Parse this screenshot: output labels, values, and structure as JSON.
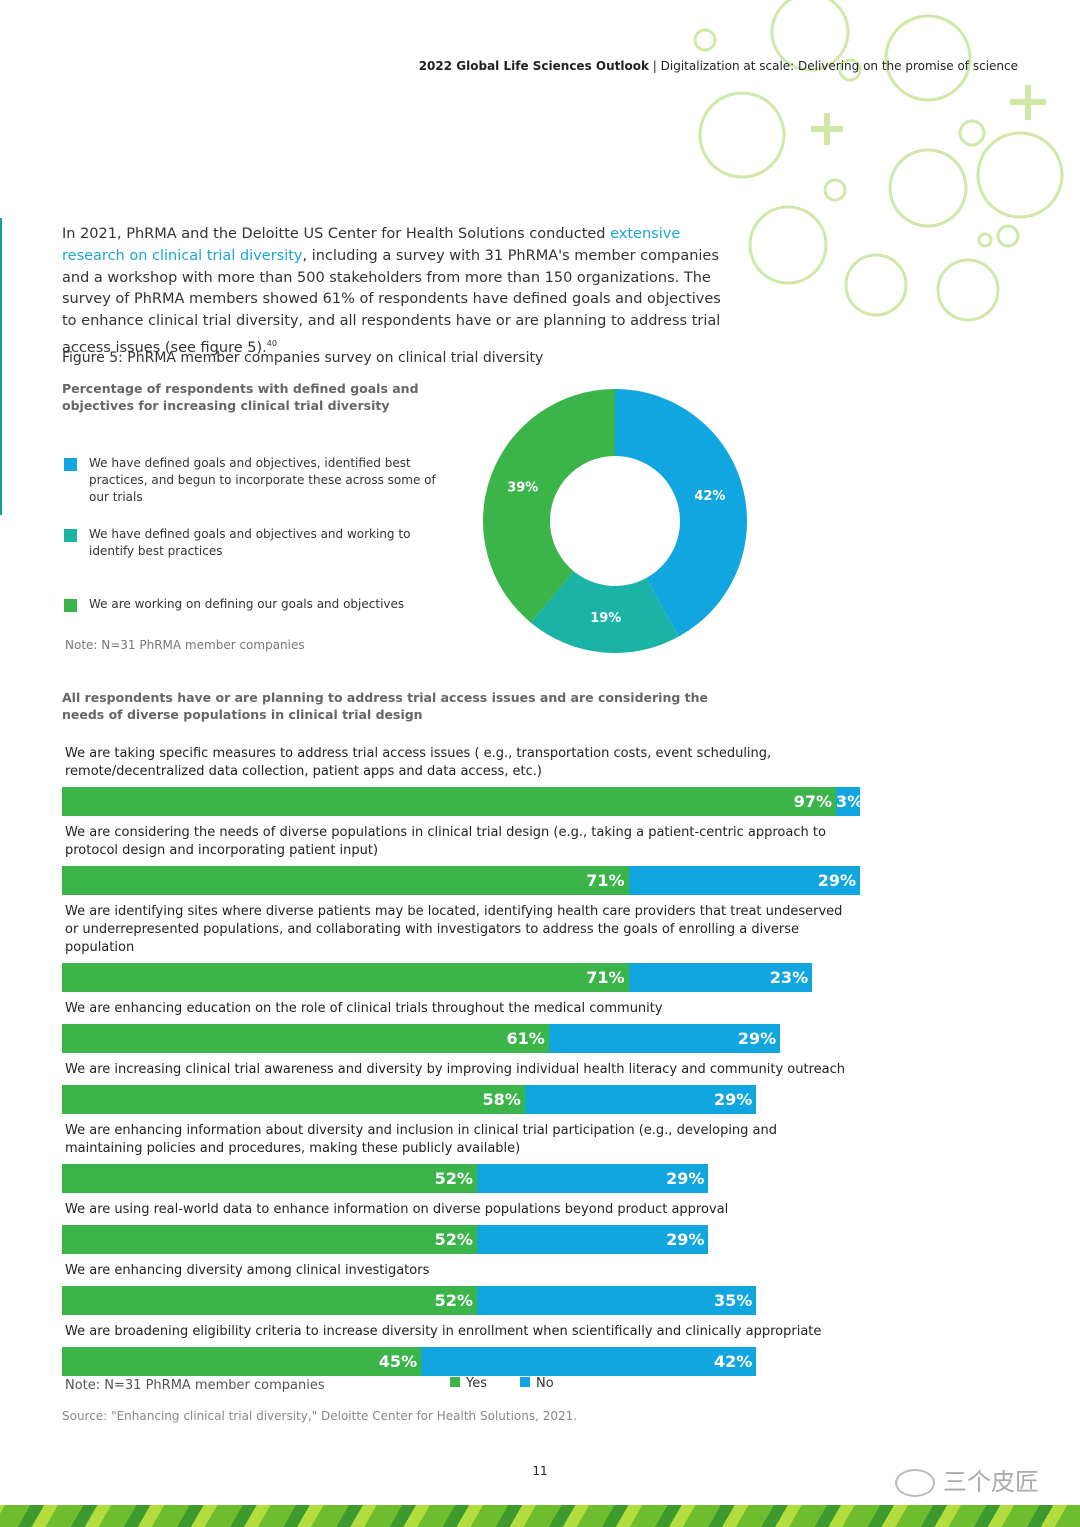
{
  "header": {
    "title": "2022 Global Life Sciences Outlook",
    "separator": "|",
    "subtitle": "Digitalization at scale: Delivering on the promise of science"
  },
  "intro": {
    "before": "In 2021, PhRMA and the Deloitte US Center for Health Solutions conducted ",
    "link": "extensive research on clinical trial diversity",
    "after": ", including a survey with 31 PhRMA's member companies and a workshop with more than 500 stakeholders from more than 150 organizations. The survey of PhRMA members showed 61% of respondents have defined goals and objectives to enhance clinical trial diversity, and all respondents have or are planning to address trial access issues (see figure 5).",
    "footnote": "40"
  },
  "figure_title": "Figure 5:  PhRMA member companies survey on clinical trial diversity",
  "chart_data": [
    {
      "type": "donut",
      "title": "Percentage of respondents with defined goals and objectives for increasing clinical trial diversity",
      "categories": [
        "We have defined goals and objectives, identified best practices, and begun to incorporate these across some of our trials",
        "We have defined goals and objectives and working to identify best practices",
        "We are working on defining our goals and objectives"
      ],
      "values": [
        42,
        19,
        39
      ],
      "value_labels": [
        "42%",
        "19%",
        "39%"
      ],
      "colors": [
        "#11a6e0",
        "#1ab3a6",
        "#3bb449"
      ],
      "note": "Note: N=31 PhRMA member companies"
    },
    {
      "type": "stacked-horizontal-bar",
      "title": "All respondents have or are planning to address trial access issues and are considering the needs of diverse populations in clinical trial design",
      "categories": [
        "We are taking specific measures to address trial access issues ( e.g., transportation costs, event scheduling, remote/decentralized data collection, patient apps and data access, etc.)",
        "We are considering the needs of diverse populations in clinical trial design (e.g., taking a patient-centric approach to protocol design and incorporating patient input)",
        "We are identifying sites where diverse patients may be located, identifying health care providers that treat undeserved or underrepresented populations, and collaborating with investigators to address the goals of enrolling a diverse population",
        "We are enhancing education on the role of clinical trials throughout the medical community",
        "We are increasing clinical trial awareness and diversity by improving individual health literacy and community outreach",
        "We are enhancing information about diversity and inclusion in clinical trial participation (e.g., developing and maintaining policies and procedures, making these publicly available)",
        "We are using real-world data to enhance information on diverse populations beyond product approval",
        "We are enhancing diversity among clinical investigators",
        "We are broadening eligibility criteria to increase diversity in enrollment when scientifically and clinically appropriate"
      ],
      "series": [
        {
          "name": "Yes",
          "color": "#3bb449",
          "values": [
            97,
            71,
            71,
            61,
            58,
            52,
            52,
            52,
            45
          ],
          "value_labels": [
            "97%",
            "71%",
            "71%",
            "61%",
            "58%",
            "52%",
            "52%",
            "52%",
            "45%"
          ]
        },
        {
          "name": "No",
          "color": "#11a6e0",
          "values": [
            3,
            29,
            23,
            29,
            29,
            29,
            29,
            35,
            42
          ],
          "value_labels": [
            "3%",
            "29%",
            "23%",
            "29%",
            "29%",
            "29%",
            "29%",
            "35%",
            "42%"
          ]
        }
      ],
      "xlim": [
        0,
        100
      ],
      "note": "Note: N=31 PhRMA member companies"
    }
  ],
  "source": "Source: \"Enhancing clinical trial diversity,\" Deloitte Center for Health Solutions, 2021.",
  "page_number": "11",
  "watermark": "三个皮匠"
}
